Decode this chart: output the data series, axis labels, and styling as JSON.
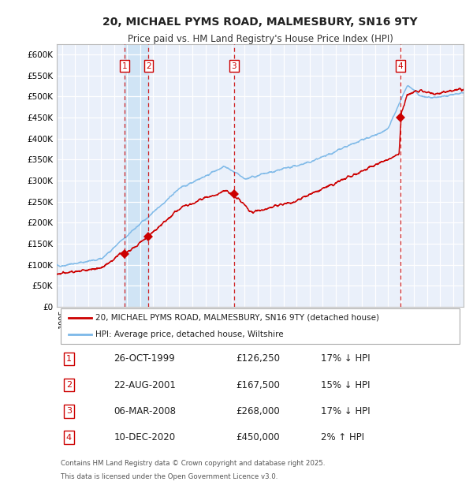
{
  "title_line1": "20, MICHAEL PYMS ROAD, MALMESBURY, SN16 9TY",
  "title_line2": "Price paid vs. HM Land Registry's House Price Index (HPI)",
  "ylabel_ticks": [
    "£0",
    "£50K",
    "£100K",
    "£150K",
    "£200K",
    "£250K",
    "£300K",
    "£350K",
    "£400K",
    "£450K",
    "£500K",
    "£550K",
    "£600K"
  ],
  "ytick_values": [
    0,
    50000,
    100000,
    150000,
    200000,
    250000,
    300000,
    350000,
    400000,
    450000,
    500000,
    550000,
    600000
  ],
  "ylim": [
    0,
    625000
  ],
  "xlim_start": 1994.6,
  "xlim_end": 2025.8,
  "transactions": [
    {
      "num": 1,
      "date": "26-OCT-1999",
      "year": 1999.82,
      "price": 126250,
      "pct": "17%",
      "dir": "↓"
    },
    {
      "num": 2,
      "date": "22-AUG-2001",
      "year": 2001.64,
      "price": 167500,
      "pct": "15%",
      "dir": "↓"
    },
    {
      "num": 3,
      "date": "06-MAR-2008",
      "year": 2008.18,
      "price": 268000,
      "pct": "17%",
      "dir": "↓"
    },
    {
      "num": 4,
      "date": "10-DEC-2020",
      "year": 2020.94,
      "price": 450000,
      "pct": "2%",
      "dir": "↑"
    }
  ],
  "legend_line1": "20, MICHAEL PYMS ROAD, MALMESBURY, SN16 9TY (detached house)",
  "legend_line2": "HPI: Average price, detached house, Wiltshire",
  "footer_line1": "Contains HM Land Registry data © Crown copyright and database right 2025.",
  "footer_line2": "This data is licensed under the Open Government Licence v3.0.",
  "bg_color": "#EAF0FA",
  "grid_color": "#FFFFFF",
  "hpi_color": "#7CB8E8",
  "price_color": "#CC0000",
  "vline_color": "#CC0000",
  "vline_color2": "#7799CC",
  "band_color": "#D0E4F5",
  "marker_color": "#CC0000",
  "box_edge_color": "#CC0000"
}
